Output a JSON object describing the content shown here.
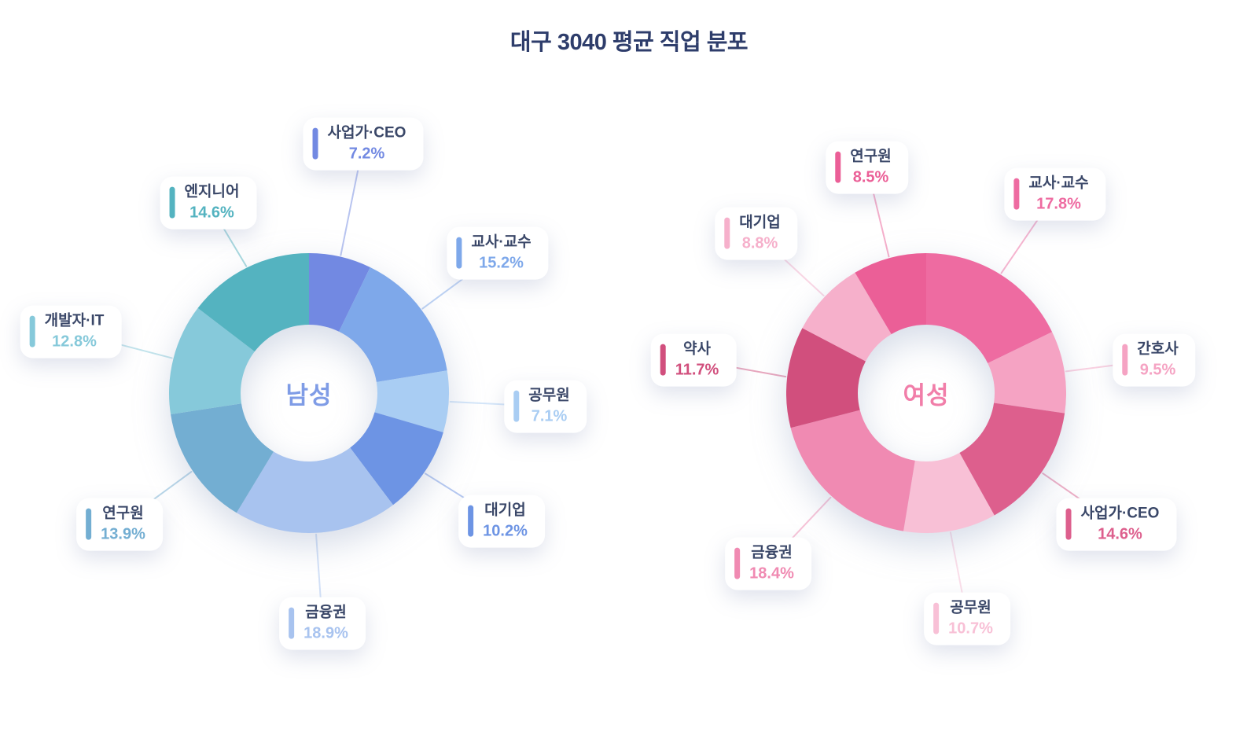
{
  "title": "대구 3040 평균 직업 분포",
  "chart_data": {
    "type": "pie",
    "subtype": "donut",
    "title": "대구 3040 평균 직업 분포",
    "slice_order": "clockwise-from-top",
    "charts": [
      {
        "center_label": "남성",
        "center_label_color": "#7f9ce6",
        "slices": [
          {
            "name": "사업가·CEO",
            "value": 7.2,
            "percent_label": "7.2%",
            "color": "#7289e2"
          },
          {
            "name": "교사·교수",
            "value": 15.2,
            "percent_label": "15.2%",
            "color": "#7ea8ea"
          },
          {
            "name": "공무원",
            "value": 7.1,
            "percent_label": "7.1%",
            "color": "#a9cdf3"
          },
          {
            "name": "대기업",
            "value": 10.2,
            "percent_label": "10.2%",
            "color": "#6d94e4"
          },
          {
            "name": "금융권",
            "value": 18.9,
            "percent_label": "18.9%",
            "color": "#a8c3ef"
          },
          {
            "name": "연구원",
            "value": 13.9,
            "percent_label": "13.9%",
            "color": "#73aed2"
          },
          {
            "name": "개발자·IT",
            "value": 12.8,
            "percent_label": "12.8%",
            "color": "#86c9da"
          },
          {
            "name": "엔지니어",
            "value": 14.6,
            "percent_label": "14.6%",
            "color": "#54b3c0"
          }
        ]
      },
      {
        "center_label": "여성",
        "center_label_color": "#f17ea9",
        "slices": [
          {
            "name": "교사·교수",
            "value": 17.8,
            "percent_label": "17.8%",
            "color": "#ee6ba1"
          },
          {
            "name": "간호사",
            "value": 9.5,
            "percent_label": "9.5%",
            "color": "#f5a3c3"
          },
          {
            "name": "사업가·CEO",
            "value": 14.6,
            "percent_label": "14.6%",
            "color": "#dd5f8d"
          },
          {
            "name": "공무원",
            "value": 10.7,
            "percent_label": "10.7%",
            "color": "#f8c0d6"
          },
          {
            "name": "금융권",
            "value": 18.4,
            "percent_label": "18.4%",
            "color": "#f08ab2"
          },
          {
            "name": "약사",
            "value": 11.7,
            "percent_label": "11.7%",
            "color": "#d14f7d"
          },
          {
            "name": "대기업",
            "value": 8.8,
            "percent_label": "8.8%",
            "color": "#f6b0cb"
          },
          {
            "name": "연구원",
            "value": 8.5,
            "percent_label": "8.5%",
            "color": "#eb5f97"
          }
        ]
      }
    ]
  }
}
